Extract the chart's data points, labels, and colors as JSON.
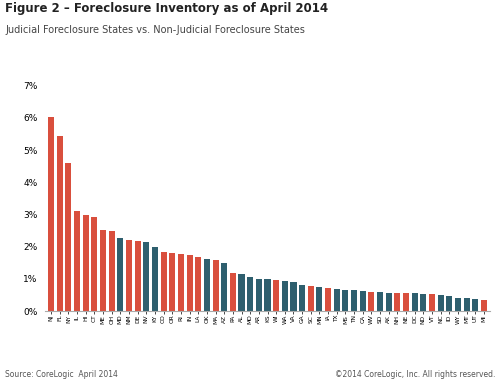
{
  "title": "Figure 2 – Foreclosure Inventory as of April 2014",
  "subtitle": "Judicial Foreclosure States vs. Non-Judicial Foreclosure States",
  "source_left": "Source: CoreLogic  April 2014",
  "source_right": "©2014 CoreLogic, Inc. All rights reserved.",
  "judicial_color": "#D94F3D",
  "non_judicial_color": "#2E5F6E",
  "ylim": [
    0,
    0.07
  ],
  "yticks": [
    0.0,
    0.01,
    0.02,
    0.03,
    0.04,
    0.05,
    0.06,
    0.07
  ],
  "ytick_labels": [
    "0%",
    "1%",
    "2%",
    "3%",
    "4%",
    "5%",
    "6%",
    "7%"
  ],
  "bars": [
    {
      "state": "NJ",
      "value": 0.0603,
      "type": "judicial"
    },
    {
      "state": "FL",
      "value": 0.0545,
      "type": "judicial"
    },
    {
      "state": "NY",
      "value": 0.046,
      "type": "judicial"
    },
    {
      "state": "IL",
      "value": 0.031,
      "type": "judicial"
    },
    {
      "state": "HI",
      "value": 0.03,
      "type": "judicial"
    },
    {
      "state": "CT",
      "value": 0.0292,
      "type": "judicial"
    },
    {
      "state": "ME",
      "value": 0.0253,
      "type": "judicial"
    },
    {
      "state": "OH",
      "value": 0.025,
      "type": "judicial"
    },
    {
      "state": "MD",
      "value": 0.0228,
      "type": "non-judicial"
    },
    {
      "state": "NM",
      "value": 0.0222,
      "type": "judicial"
    },
    {
      "state": "DE",
      "value": 0.0218,
      "type": "judicial"
    },
    {
      "state": "NV",
      "value": 0.0215,
      "type": "non-judicial"
    },
    {
      "state": "KY",
      "value": 0.02,
      "type": "non-judicial"
    },
    {
      "state": "CO",
      "value": 0.0185,
      "type": "judicial"
    },
    {
      "state": "OR",
      "value": 0.0182,
      "type": "judicial"
    },
    {
      "state": "RI",
      "value": 0.0178,
      "type": "judicial"
    },
    {
      "state": "IN",
      "value": 0.0175,
      "type": "judicial"
    },
    {
      "state": "LA",
      "value": 0.0168,
      "type": "judicial"
    },
    {
      "state": "OK",
      "value": 0.0163,
      "type": "non-judicial"
    },
    {
      "state": "MA",
      "value": 0.0158,
      "type": "judicial"
    },
    {
      "state": "AZ",
      "value": 0.015,
      "type": "non-judicial"
    },
    {
      "state": "PA",
      "value": 0.0119,
      "type": "judicial"
    },
    {
      "state": "AL",
      "value": 0.0115,
      "type": "non-judicial"
    },
    {
      "state": "MO",
      "value": 0.0105,
      "type": "non-judicial"
    },
    {
      "state": "AR",
      "value": 0.01,
      "type": "non-judicial"
    },
    {
      "state": "KS",
      "value": 0.01,
      "type": "non-judicial"
    },
    {
      "state": "WI",
      "value": 0.0098,
      "type": "judicial"
    },
    {
      "state": "WA",
      "value": 0.0095,
      "type": "non-judicial"
    },
    {
      "state": "VA",
      "value": 0.009,
      "type": "non-judicial"
    },
    {
      "state": "GA",
      "value": 0.008,
      "type": "non-judicial"
    },
    {
      "state": "SC",
      "value": 0.0077,
      "type": "judicial"
    },
    {
      "state": "MN",
      "value": 0.0075,
      "type": "non-judicial"
    },
    {
      "state": "IA",
      "value": 0.0073,
      "type": "judicial"
    },
    {
      "state": "TX",
      "value": 0.007,
      "type": "non-judicial"
    },
    {
      "state": "MS",
      "value": 0.0067,
      "type": "non-judicial"
    },
    {
      "state": "TN",
      "value": 0.0065,
      "type": "non-judicial"
    },
    {
      "state": "CA",
      "value": 0.0062,
      "type": "non-judicial"
    },
    {
      "state": "WV",
      "value": 0.006,
      "type": "judicial"
    },
    {
      "state": "SD",
      "value": 0.006,
      "type": "non-judicial"
    },
    {
      "state": "AK",
      "value": 0.0058,
      "type": "non-judicial"
    },
    {
      "state": "NH",
      "value": 0.0058,
      "type": "judicial"
    },
    {
      "state": "NE",
      "value": 0.0056,
      "type": "judicial"
    },
    {
      "state": "DC",
      "value": 0.0055,
      "type": "non-judicial"
    },
    {
      "state": "ND",
      "value": 0.0053,
      "type": "non-judicial"
    },
    {
      "state": "VT",
      "value": 0.0052,
      "type": "judicial"
    },
    {
      "state": "NC",
      "value": 0.005,
      "type": "non-judicial"
    },
    {
      "state": "ID",
      "value": 0.0048,
      "type": "non-judicial"
    },
    {
      "state": "WY",
      "value": 0.0042,
      "type": "non-judicial"
    },
    {
      "state": "MT",
      "value": 0.004,
      "type": "non-judicial"
    },
    {
      "state": "UT",
      "value": 0.0038,
      "type": "non-judicial"
    },
    {
      "state": "MI",
      "value": 0.0036,
      "type": "judicial"
    }
  ]
}
